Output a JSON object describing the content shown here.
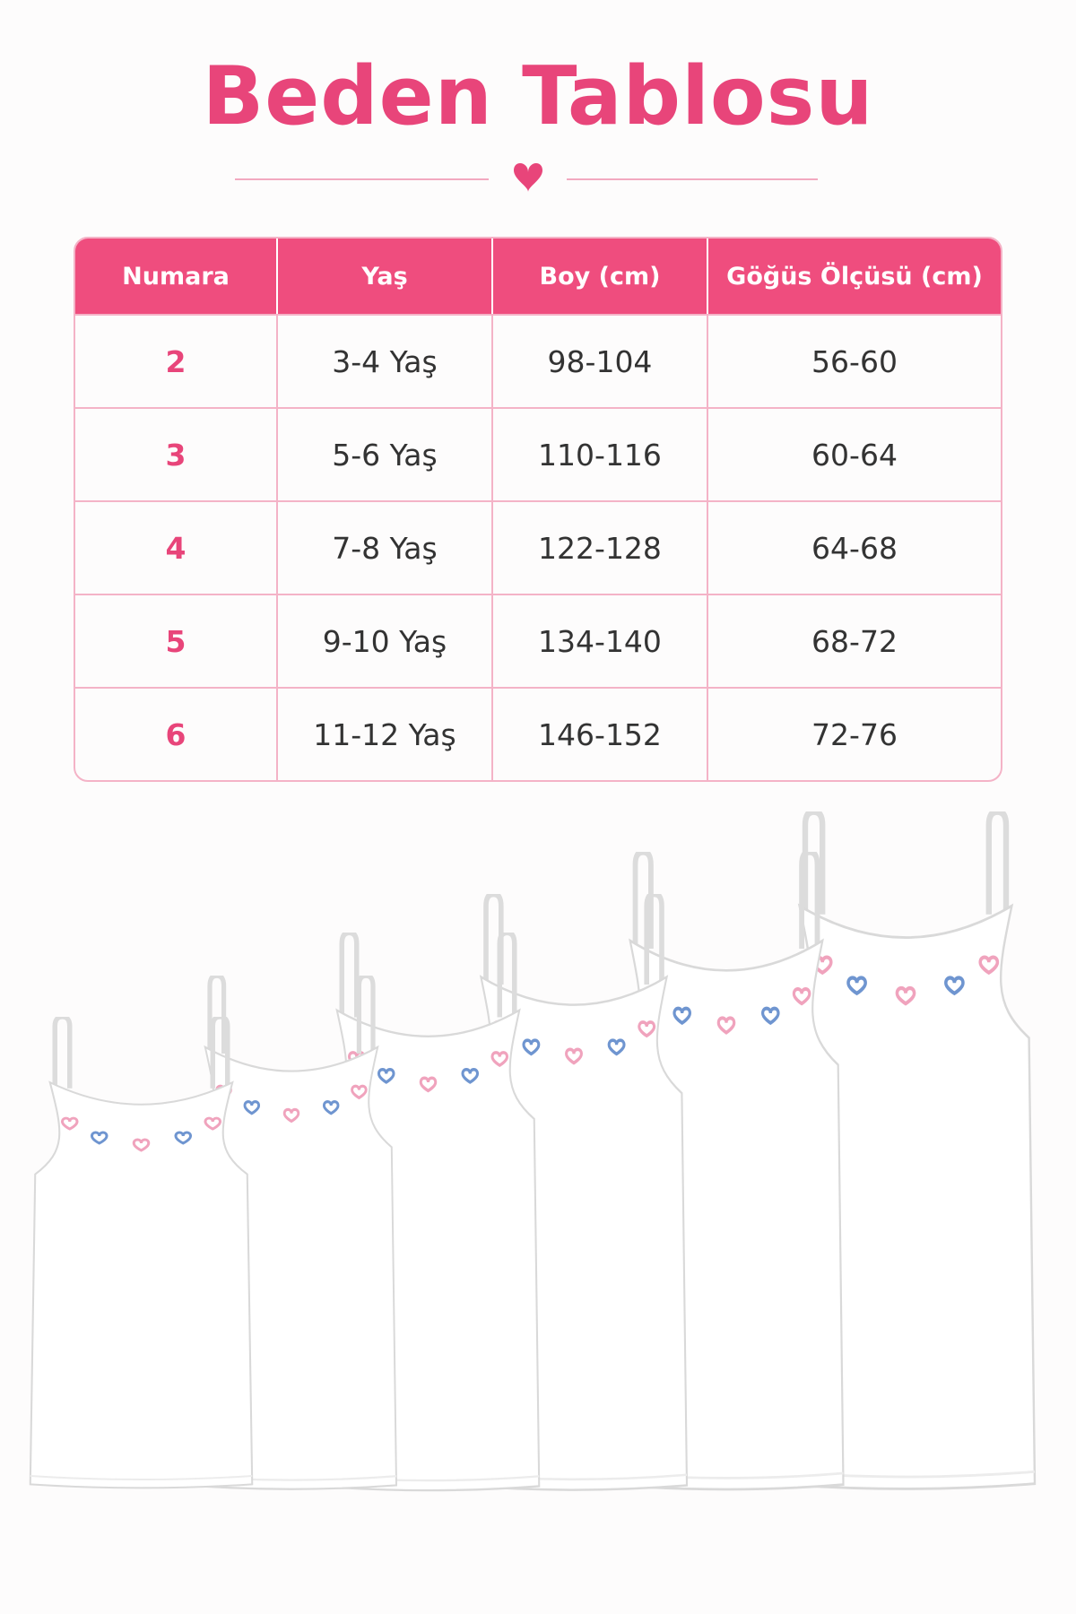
{
  "header": {
    "title": "Beden Tablosu"
  },
  "table": {
    "columns": [
      "Numara",
      "Yaş",
      "Boy (cm)",
      "Göğüs Ölçüsü (cm)"
    ],
    "rows": [
      [
        "2",
        "3-4 Yaş",
        "98-104",
        "56-60"
      ],
      [
        "3",
        "5-6 Yaş",
        "110-116",
        "60-64"
      ],
      [
        "4",
        "7-8 Yaş",
        "122-128",
        "64-68"
      ],
      [
        "5",
        "9-10 Yaş",
        "134-140",
        "68-72"
      ],
      [
        "6",
        "11-12 Yaş",
        "146-152",
        "72-76"
      ]
    ]
  }
}
